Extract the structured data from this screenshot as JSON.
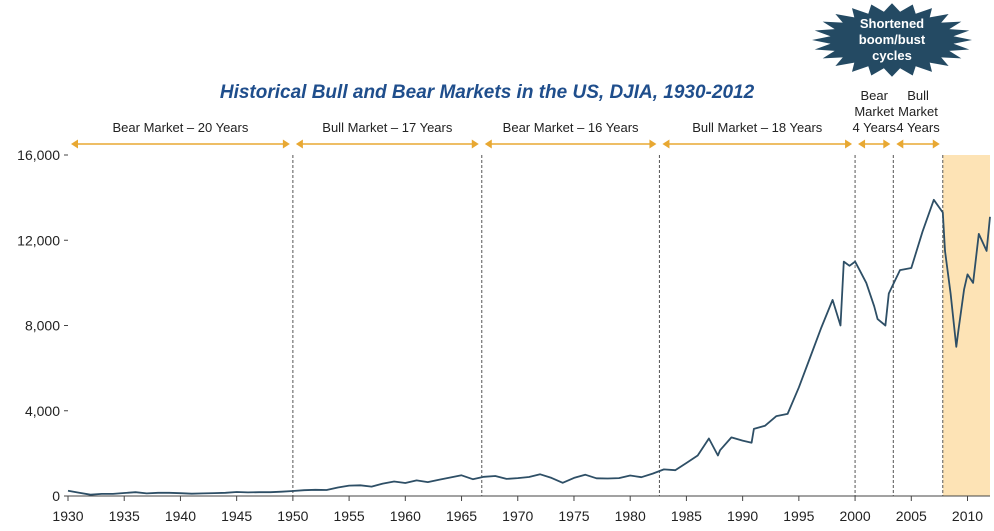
{
  "chart_data": {
    "type": "line",
    "title": "Historical Bull and Bear Markets in the US, DJIA, 1930-2012",
    "xlabel": "",
    "ylabel": "",
    "xlim": [
      1930,
      2012
    ],
    "ylim": [
      0,
      16000
    ],
    "x_ticks": [
      1930,
      1935,
      1940,
      1945,
      1950,
      1955,
      1960,
      1965,
      1970,
      1975,
      1980,
      1985,
      1990,
      1995,
      2000,
      2005,
      2010
    ],
    "y_ticks": [
      0,
      4000,
      8000,
      12000,
      16000
    ],
    "x_tick_labels": [
      "1930",
      "1935",
      "1940",
      "1945",
      "1950",
      "1955",
      "1960",
      "1965",
      "1970",
      "1975",
      "1980",
      "1985",
      "1990",
      "1995",
      "2000",
      "2005",
      "2010"
    ],
    "y_tick_labels": [
      "0",
      "4,000",
      "8,000",
      "12,000",
      "16,000"
    ],
    "grid": false,
    "colors": {
      "line": "#2e4f66",
      "arrow": "#e8a832",
      "highlight": "#fde3b5",
      "divider": "#555555",
      "badge": "#244a63",
      "title": "#1f4e8c"
    },
    "series": [
      {
        "x": [
          1930,
          1931,
          1932,
          1933,
          1934,
          1935,
          1936,
          1937,
          1938,
          1939,
          1940,
          1941,
          1942,
          1943,
          1944,
          1945,
          1946,
          1947,
          1948,
          1949,
          1950,
          1951,
          1952,
          1953,
          1954,
          1955,
          1956,
          1957,
          1958,
          1959,
          1960,
          1961,
          1962,
          1963,
          1964,
          1965,
          1966,
          1967,
          1968,
          1969,
          1970,
          1971,
          1972,
          1973,
          1974,
          1975,
          1976,
          1977,
          1978,
          1979,
          1980,
          1981,
          1982,
          1983,
          1984,
          1985,
          1986,
          1987,
          1987.8,
          1988,
          1989,
          1990,
          1990.8,
          1991,
          1992,
          1993,
          1994,
          1995,
          1996,
          1997,
          1998,
          1998.7,
          1999,
          1999.5,
          2000,
          2000.5,
          2001,
          2001.7,
          2002,
          2002.7,
          2003,
          2004,
          2005,
          2006,
          2007,
          2007.8,
          2008,
          2008.5,
          2009,
          2009.2,
          2009.7,
          2010,
          2010.5,
          2011,
          2011.7,
          2012
        ],
        "values": [
          250,
          150,
          60,
          100,
          100,
          140,
          180,
          120,
          150,
          150,
          130,
          110,
          120,
          135,
          150,
          190,
          170,
          180,
          180,
          200,
          235,
          270,
          290,
          280,
          400,
          490,
          500,
          440,
          580,
          680,
          610,
          730,
          650,
          760,
          870,
          970,
          790,
          900,
          940,
          800,
          840,
          890,
          1020,
          850,
          620,
          850,
          1000,
          830,
          820,
          840,
          960,
          880,
          1050,
          1250,
          1210,
          1550,
          1900,
          2700,
          1900,
          2150,
          2750,
          2600,
          2500,
          3150,
          3300,
          3750,
          3850,
          5100,
          6500,
          7900,
          9200,
          8000,
          11000,
          10800,
          11000,
          10500,
          10000,
          8900,
          8300,
          8000,
          9500,
          10600,
          10700,
          12400,
          13900,
          13300,
          11500,
          9500,
          7000,
          7800,
          9700,
          10400,
          10000,
          12300,
          11500,
          13100
        ]
      }
    ],
    "periods": [
      {
        "label": "Bear Market – 20 Years",
        "start": 1930,
        "end": 1950
      },
      {
        "label": "Bull Market – 17 Years",
        "start": 1950,
        "end": 1966.8
      },
      {
        "label": "Bear Market – 16 Years",
        "start": 1966.8,
        "end": 1982.6
      },
      {
        "label": "Bull Market – 18 Years",
        "start": 1982.6,
        "end": 2000
      },
      {
        "label": "Bear Market 4 Years",
        "label_lines": [
          "Bear",
          "Market",
          "4 Years"
        ],
        "start": 2000,
        "end": 2003.4
      },
      {
        "label": "Bull Market 4 Years",
        "label_lines": [
          "Bull",
          "Market",
          "4 Years"
        ],
        "start": 2003.4,
        "end": 2007.8
      }
    ],
    "highlight": {
      "start": 2007.8,
      "end": 2012
    },
    "annotation": {
      "lines": [
        "Shortened",
        "boom/bust",
        "cycles"
      ]
    }
  }
}
